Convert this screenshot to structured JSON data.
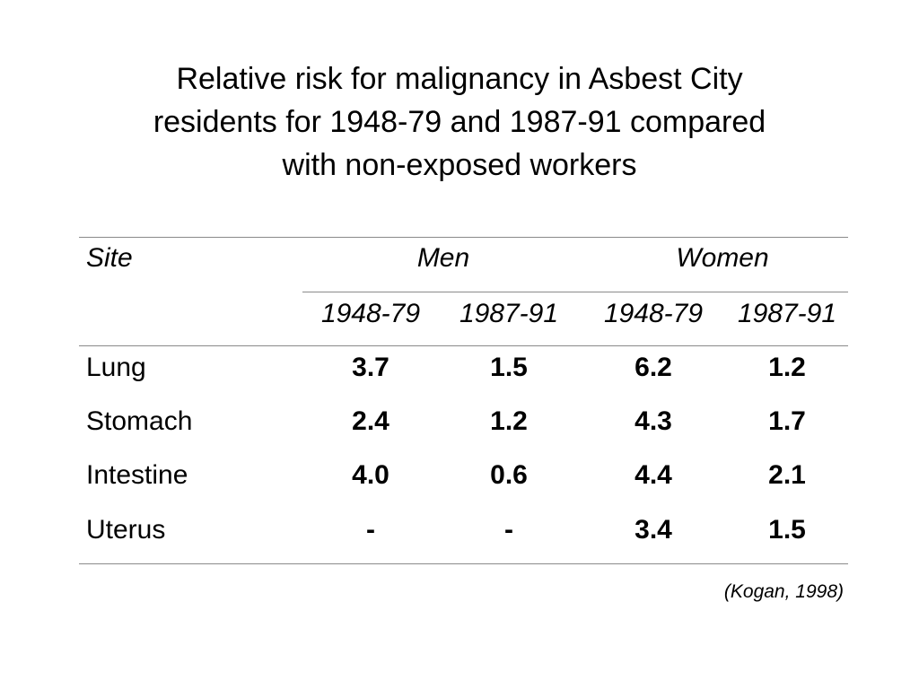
{
  "title": {
    "lines": [
      "Relative risk for malignancy in Asbest City",
      "residents for 1948-79 and 1987-91 compared",
      "with non-exposed workers"
    ]
  },
  "table": {
    "site_header": "Site",
    "groups": [
      "Men",
      "Women"
    ],
    "periods": [
      "1948-79",
      "1987-91",
      "1948-79",
      "1987-91"
    ],
    "rows": [
      {
        "site": "Lung",
        "values": [
          "3.7",
          "1.5",
          "6.2",
          "1.2"
        ]
      },
      {
        "site": "Stomach",
        "values": [
          "2.4",
          "1.2",
          "4.3",
          "1.7"
        ]
      },
      {
        "site": "Intestine",
        "values": [
          "4.0",
          "0.6",
          "4.4",
          "2.1"
        ]
      },
      {
        "site": "Uterus",
        "values": [
          "-",
          "-",
          "3.4",
          "1.5"
        ]
      }
    ]
  },
  "source": "(Kogan, 1998)"
}
